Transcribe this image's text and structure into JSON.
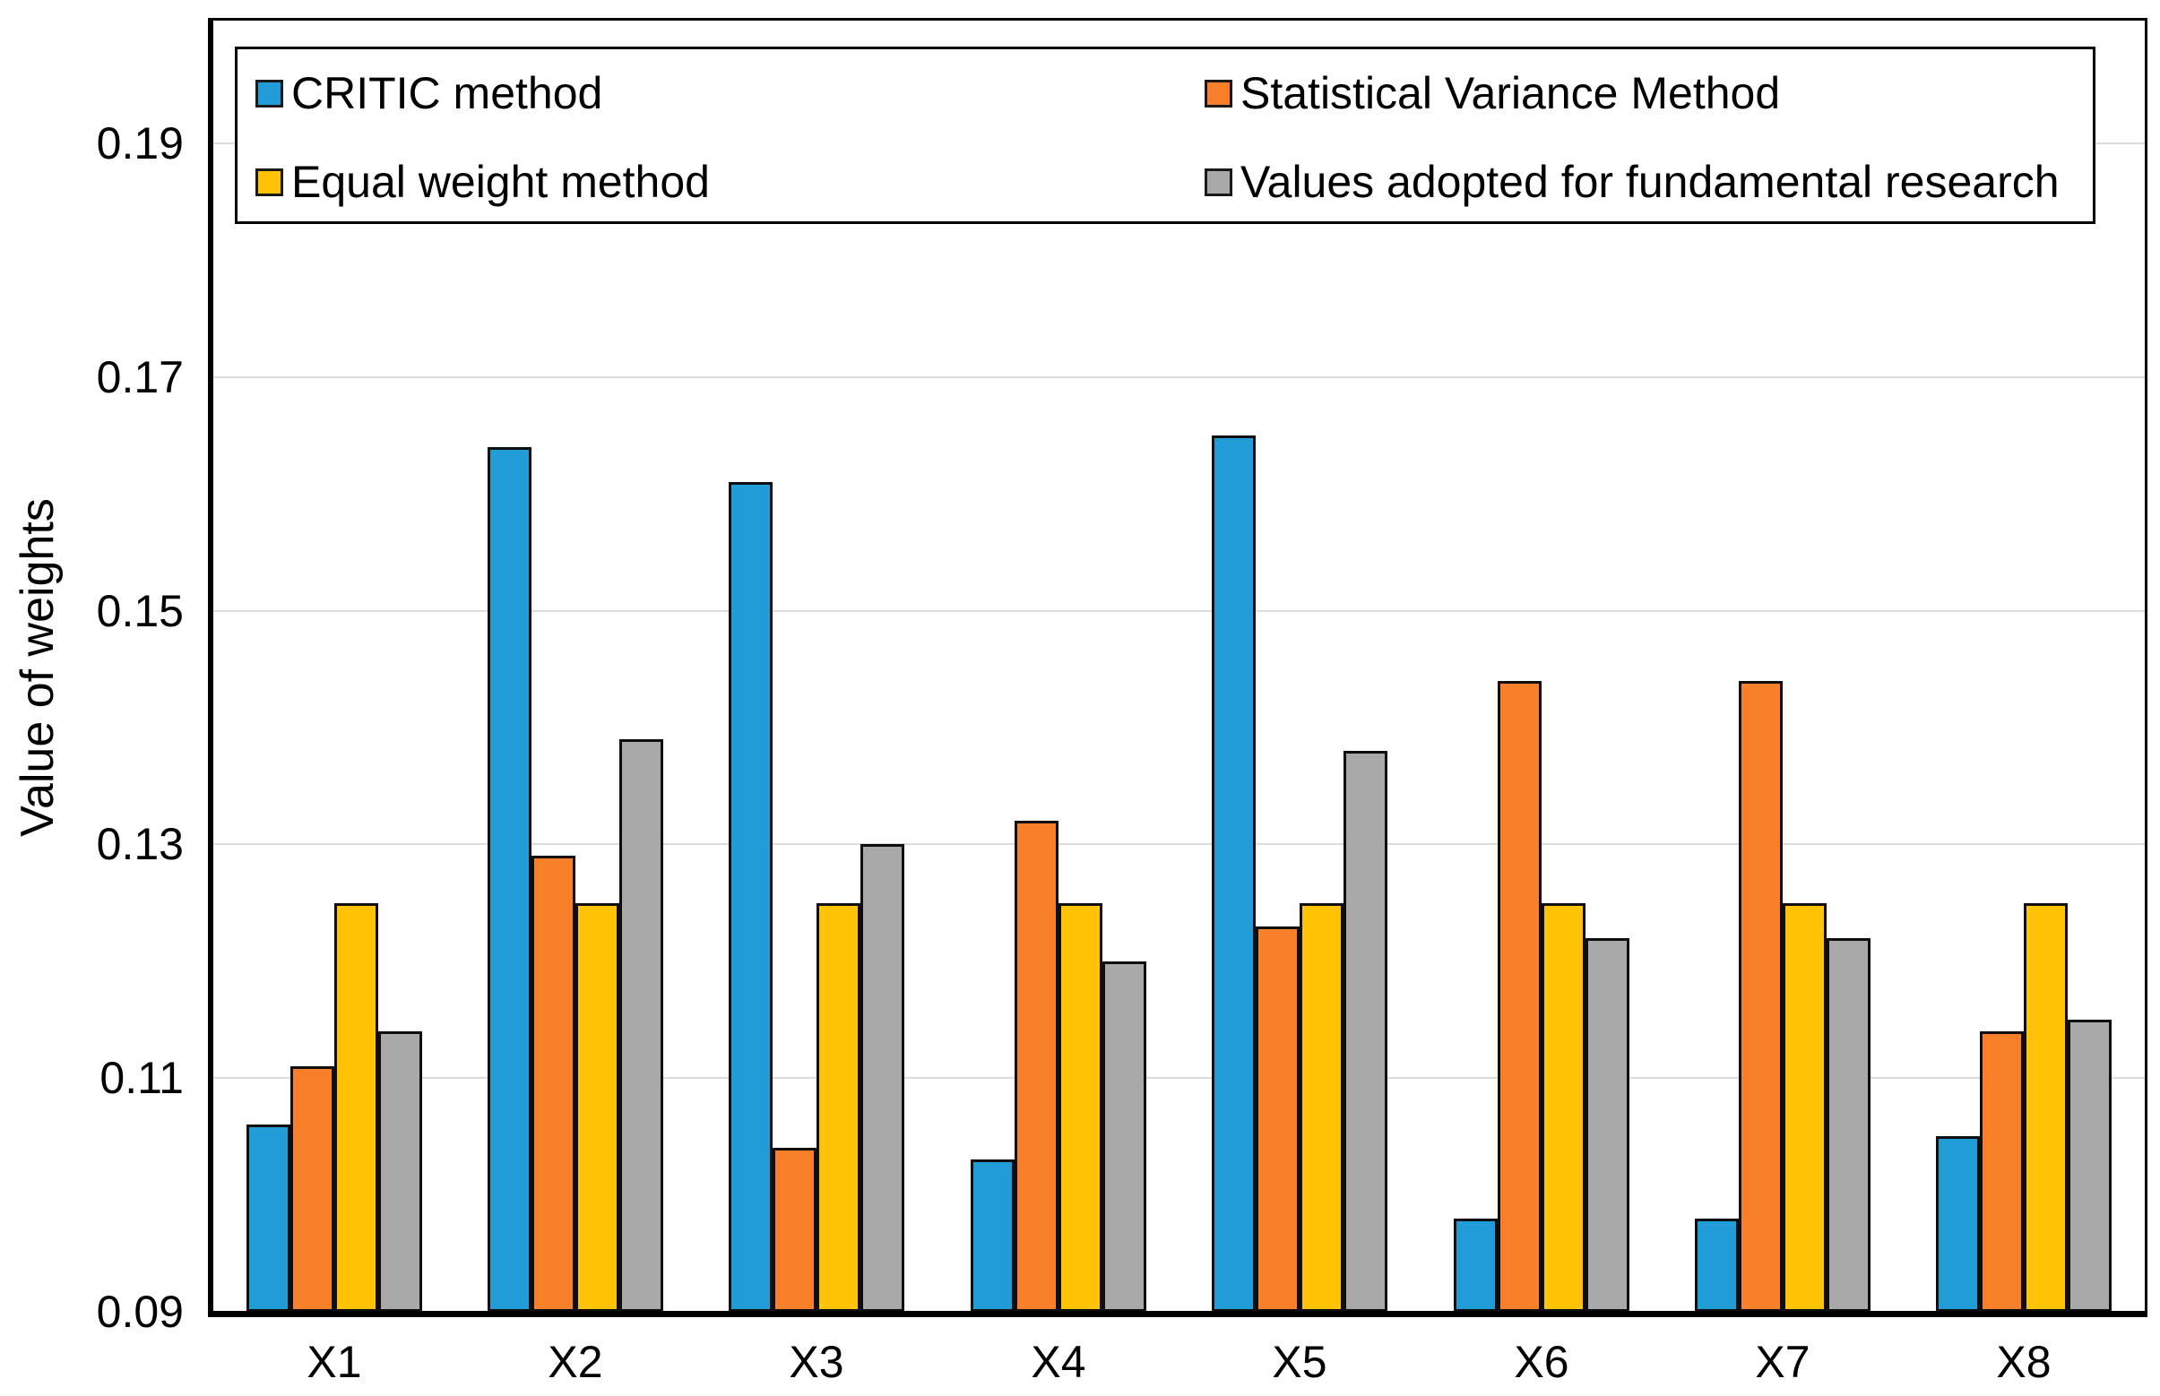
{
  "chart_data": {
    "type": "bar",
    "title": "",
    "xlabel": "",
    "ylabel": "Value of weights",
    "categories": [
      "X1",
      "X2",
      "X3",
      "X4",
      "X5",
      "X6",
      "X7",
      "X8"
    ],
    "series": [
      {
        "name": "CRITIC method",
        "color": "#219CD7",
        "values": [
          0.106,
          0.164,
          0.161,
          0.103,
          0.165,
          0.098,
          0.098,
          0.105
        ]
      },
      {
        "name": "Statistical Variance Method",
        "color": "#F9802B",
        "values": [
          0.111,
          0.129,
          0.104,
          0.132,
          0.123,
          0.144,
          0.144,
          0.114
        ]
      },
      {
        "name": "Equal weight method",
        "color": "#FFC307",
        "values": [
          0.125,
          0.125,
          0.125,
          0.125,
          0.125,
          0.125,
          0.125,
          0.125
        ]
      },
      {
        "name": "Values adopted for fundamental research",
        "color": "#A9A9A9",
        "values": [
          0.114,
          0.139,
          0.13,
          0.12,
          0.138,
          0.122,
          0.122,
          0.115
        ]
      }
    ],
    "ylim": [
      0.09,
      0.2005
    ],
    "yticks": [
      0.09,
      0.11,
      0.13,
      0.15,
      0.17,
      0.19
    ],
    "ytick_labels": [
      "0.09",
      "0.11",
      "0.13",
      "0.15",
      "0.17",
      "0.19"
    ],
    "grid": true,
    "legend_position": "top-inside-box",
    "bar_border_color": "#0E0E0E",
    "gridline_color": "#DCDCDC",
    "axis_color": "#000000"
  }
}
